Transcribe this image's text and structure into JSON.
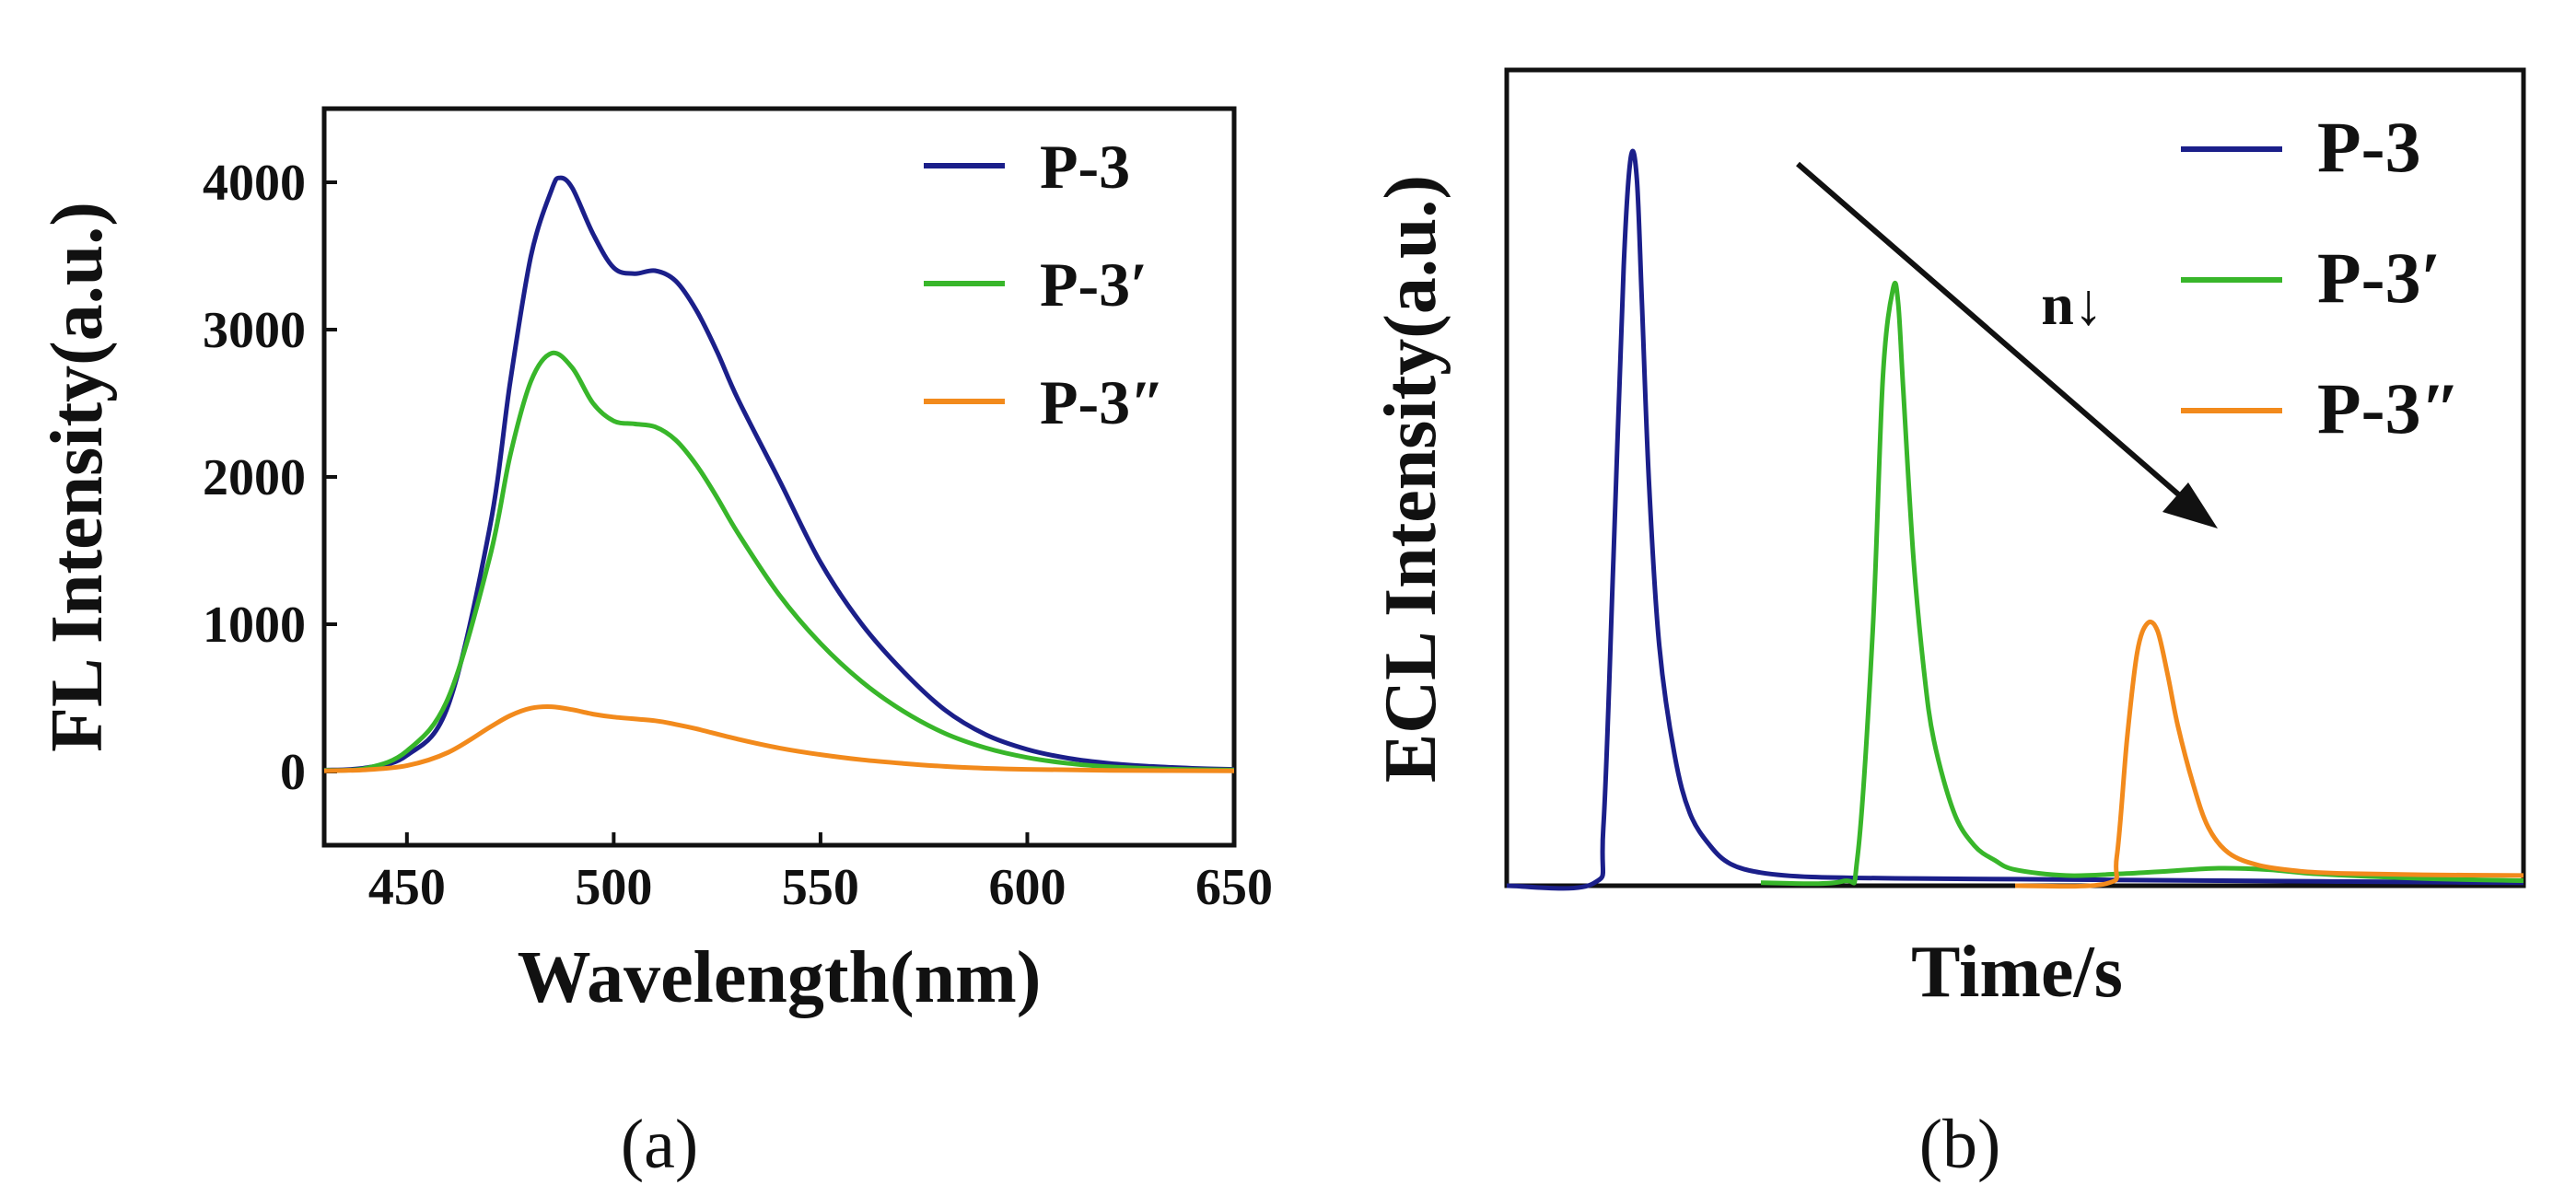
{
  "chart_data": [
    {
      "panel_label": "(a)",
      "type": "line",
      "title": "",
      "xlabel": "Wavelength(nm)",
      "ylabel": "FL Intensity(a.u.)",
      "xlim": [
        430,
        650
      ],
      "ylim": [
        -500,
        4500
      ],
      "xticks": [
        450,
        500,
        550,
        600,
        650
      ],
      "yticks": [
        0,
        1000,
        2000,
        3000,
        4000
      ],
      "grid": false,
      "legend": "top-right",
      "series": [
        {
          "name": "P-3",
          "color": "#1b1f8a",
          "x": [
            430,
            440,
            450,
            460,
            470,
            475,
            480,
            485,
            487,
            490,
            495,
            500,
            505,
            510,
            515,
            520,
            525,
            530,
            540,
            550,
            560,
            570,
            580,
            590,
            600,
            610,
            620,
            630,
            640,
            650
          ],
          "y": [
            10,
            25,
            110,
            450,
            1650,
            2650,
            3500,
            3950,
            4030,
            3960,
            3650,
            3420,
            3380,
            3400,
            3330,
            3130,
            2850,
            2530,
            1980,
            1420,
            1000,
            680,
            420,
            250,
            150,
            90,
            55,
            35,
            22,
            15
          ]
        },
        {
          "name": "P-3′",
          "color": "#38b62a",
          "x": [
            430,
            440,
            450,
            460,
            470,
            475,
            480,
            485,
            490,
            495,
            500,
            505,
            510,
            515,
            520,
            525,
            530,
            540,
            550,
            560,
            570,
            580,
            590,
            600,
            610,
            620,
            630,
            640,
            650
          ],
          "y": [
            8,
            22,
            140,
            500,
            1450,
            2150,
            2650,
            2840,
            2740,
            2500,
            2380,
            2360,
            2340,
            2250,
            2080,
            1860,
            1620,
            1200,
            870,
            610,
            410,
            260,
            160,
            95,
            55,
            32,
            20,
            13,
            10
          ]
        },
        {
          "name": "P-3″",
          "color": "#f28a1c",
          "x": [
            430,
            440,
            450,
            460,
            470,
            475,
            480,
            485,
            490,
            495,
            500,
            510,
            515,
            520,
            530,
            540,
            550,
            560,
            570,
            580,
            590,
            600,
            620,
            650
          ],
          "y": [
            5,
            12,
            40,
            130,
            300,
            380,
            430,
            440,
            420,
            390,
            370,
            345,
            320,
            290,
            220,
            160,
            115,
            80,
            55,
            35,
            22,
            15,
            8,
            5
          ]
        }
      ]
    },
    {
      "panel_label": "(b)",
      "type": "line",
      "title": "",
      "xlabel": "Time/s",
      "ylabel": "ECL Intensity(a.u.)",
      "xlim": [
        0,
        1
      ],
      "ylim": [
        0,
        1.12
      ],
      "xticks": [],
      "yticks": [],
      "grid": false,
      "legend": "top-right",
      "annotation": "n↓",
      "series": [
        {
          "name": "P-3",
          "color": "#1b1f8a",
          "x": [
            0,
            0.085,
            0.095,
            0.105,
            0.115,
            0.122,
            0.128,
            0.133,
            0.14,
            0.15,
            0.165,
            0.18,
            0.2,
            0.22,
            0.25,
            0.3,
            0.4,
            0.5,
            0.6,
            0.7,
            0.8,
            0.9,
            1.0
          ],
          "y": [
            0.0,
            0.003,
            0.08,
            0.45,
            0.85,
            1.0,
            0.97,
            0.8,
            0.55,
            0.33,
            0.18,
            0.1,
            0.055,
            0.03,
            0.018,
            0.012,
            0.01,
            0.009,
            0.008,
            0.007,
            0.006,
            0.005,
            0.004
          ]
        },
        {
          "name": "P-3′",
          "color": "#38b62a",
          "x": [
            0.25,
            0.33,
            0.345,
            0.36,
            0.37,
            0.38,
            0.385,
            0.39,
            0.4,
            0.41,
            0.42,
            0.44,
            0.46,
            0.48,
            0.5,
            0.55,
            0.6,
            0.65,
            0.7,
            0.75,
            0.8,
            0.9,
            1.0
          ],
          "y": [
            0.004,
            0.006,
            0.04,
            0.35,
            0.7,
            0.82,
            0.8,
            0.68,
            0.45,
            0.3,
            0.2,
            0.1,
            0.055,
            0.035,
            0.022,
            0.014,
            0.016,
            0.02,
            0.024,
            0.022,
            0.016,
            0.01,
            0.007
          ]
        },
        {
          "name": "P-3″",
          "color": "#f28a1c",
          "x": [
            0.5,
            0.59,
            0.6,
            0.61,
            0.62,
            0.63,
            0.64,
            0.65,
            0.66,
            0.675,
            0.69,
            0.71,
            0.74,
            0.78,
            0.82,
            0.9,
            1.0
          ],
          "y": [
            0.0,
            0.003,
            0.04,
            0.2,
            0.32,
            0.36,
            0.35,
            0.29,
            0.22,
            0.14,
            0.08,
            0.045,
            0.028,
            0.02,
            0.017,
            0.015,
            0.014
          ]
        }
      ]
    }
  ]
}
